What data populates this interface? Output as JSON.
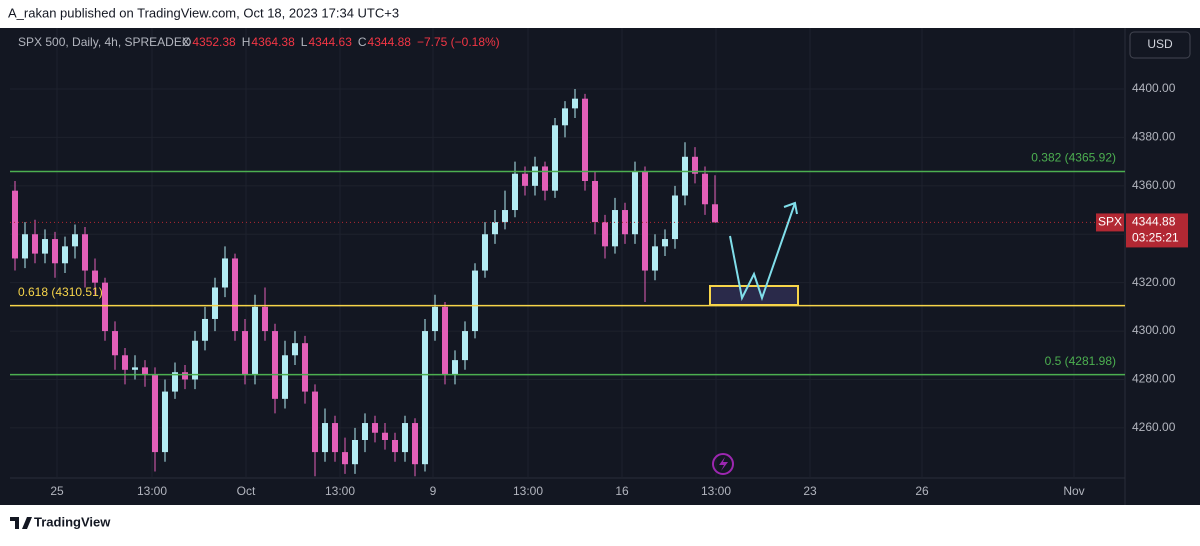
{
  "header": {
    "published": "A_rakan published on TradingView.com, Oct 18, 2023 17:34 UTC+3"
  },
  "footer": {
    "brand": "TradingView"
  },
  "chart_data": {
    "type": "candlestick",
    "symbol": "SPX 500, Daily, 4h, SPREADEX",
    "legend": [
      {
        "key": "O",
        "value": "4352.38"
      },
      {
        "key": "H",
        "value": "4364.38"
      },
      {
        "key": "L",
        "value": "4344.63"
      },
      {
        "key": "C",
        "value": "4344.88"
      }
    ],
    "change": "−7.75 (−0.18%)",
    "currency": "USD",
    "last_price": {
      "ticker": "SPX",
      "value": 4344.88,
      "countdown": "03:25:21",
      "color": "#b22833"
    },
    "up_color": "#b2ebf2",
    "down_color": "#e35fb8",
    "x": [
      0,
      1,
      2,
      3,
      4,
      5,
      6,
      7,
      8,
      9,
      10,
      11,
      12,
      13,
      14,
      15,
      16,
      17,
      18,
      19,
      20,
      21,
      22,
      23,
      24,
      25,
      26,
      27,
      28,
      29,
      30,
      31,
      32,
      33,
      34,
      35,
      36,
      37,
      38,
      39,
      40,
      41,
      42,
      43,
      44,
      45,
      46,
      47,
      48,
      49,
      50,
      51,
      52,
      53,
      54,
      55,
      56,
      57,
      58,
      59,
      60,
      61,
      62,
      63,
      64,
      65,
      66,
      67,
      68,
      69,
      70
    ],
    "open": [
      4358,
      4330,
      4340,
      4332,
      4338,
      4328,
      4335,
      4340,
      4325,
      4320,
      4300,
      4290,
      4284,
      4285,
      4282,
      4250,
      4275,
      4283,
      4280,
      4296,
      4305,
      4318,
      4330,
      4300,
      4282,
      4310,
      4300,
      4272,
      4290,
      4295,
      4275,
      4250,
      4262,
      4250,
      4245,
      4255,
      4262,
      4258,
      4255,
      4250,
      4262,
      4245,
      4300,
      4310,
      4282,
      4288,
      4300,
      4325,
      4340,
      4345,
      4350,
      4365,
      4360,
      4368,
      4358,
      4385,
      4392,
      4396,
      4362,
      4345,
      4335,
      4350,
      4340,
      4366,
      4325,
      4335,
      4338,
      4356,
      4372,
      4365,
      4352.38
    ],
    "high": [
      4362,
      4345,
      4346,
      4342,
      4341,
      4339,
      4344,
      4343,
      4330,
      4322,
      4304,
      4293,
      4290,
      4288,
      4285,
      4280,
      4287,
      4286,
      4300,
      4310,
      4322,
      4335,
      4332,
      4305,
      4315,
      4318,
      4303,
      4296,
      4300,
      4298,
      4278,
      4268,
      4265,
      4256,
      4260,
      4266,
      4265,
      4262,
      4258,
      4265,
      4264,
      4305,
      4315,
      4312,
      4292,
      4304,
      4328,
      4345,
      4350,
      4358,
      4370,
      4368,
      4372,
      4370,
      4388,
      4395,
      4400,
      4398,
      4366,
      4348,
      4355,
      4353,
      4370,
      4368,
      4340,
      4342,
      4360,
      4378,
      4376,
      4368,
      4364.38
    ],
    "low": [
      4325,
      4326,
      4328,
      4328,
      4322,
      4324,
      4330,
      4318,
      4315,
      4296,
      4284,
      4278,
      4280,
      4277,
      4242,
      4246,
      4272,
      4276,
      4276,
      4292,
      4300,
      4314,
      4296,
      4278,
      4278,
      4296,
      4266,
      4268,
      4286,
      4270,
      4240,
      4246,
      4246,
      4241,
      4241,
      4250,
      4254,
      4251,
      4246,
      4246,
      4240,
      4242,
      4296,
      4278,
      4278,
      4284,
      4297,
      4322,
      4336,
      4342,
      4347,
      4356,
      4356,
      4354,
      4355,
      4380,
      4388,
      4358,
      4340,
      4330,
      4332,
      4336,
      4336,
      4312,
      4321,
      4331,
      4334,
      4352,
      4361,
      4348,
      4344.63
    ],
    "close": [
      4330,
      4340,
      4332,
      4338,
      4328,
      4335,
      4340,
      4325,
      4320,
      4300,
      4290,
      4284,
      4285,
      4282,
      4250,
      4275,
      4283,
      4280,
      4296,
      4305,
      4318,
      4330,
      4300,
      4282,
      4310,
      4300,
      4272,
      4290,
      4295,
      4275,
      4250,
      4262,
      4250,
      4245,
      4255,
      4262,
      4258,
      4255,
      4250,
      4262,
      4245,
      4300,
      4310,
      4282,
      4288,
      4300,
      4325,
      4340,
      4345,
      4350,
      4365,
      4360,
      4368,
      4358,
      4385,
      4392,
      4396,
      4362,
      4345,
      4335,
      4350,
      4340,
      4366,
      4325,
      4335,
      4338,
      4356,
      4372,
      4365,
      4352.38,
      4344.88
    ],
    "levels": [
      {
        "label": "0.382 (4365.92)",
        "value": 4365.92,
        "color": "#4caf50",
        "label_side": "right"
      },
      {
        "label": "0.618 (4310.51)",
        "value": 4310.51,
        "color": "#f7d54a",
        "label_side": "left"
      },
      {
        "label": "0.5 (4281.98)",
        "value": 4281.98,
        "color": "#4caf50",
        "label_side": "right"
      }
    ],
    "xlim": [
      -0.5,
      111
    ],
    "xticks": [
      {
        "value": 4.2,
        "label": "25"
      },
      {
        "value": 13.7,
        "label": "13:00"
      },
      {
        "value": 23.1,
        "label": "Oct"
      },
      {
        "value": 32.5,
        "label": "13:00"
      },
      {
        "value": 41.8,
        "label": "9"
      },
      {
        "value": 51.3,
        "label": "13:00"
      },
      {
        "value": 60.7,
        "label": "16"
      },
      {
        "value": 70.1,
        "label": "13:00"
      },
      {
        "value": 79.5,
        "label": "23"
      },
      {
        "value": 90.7,
        "label": "26"
      },
      {
        "value": 105.9,
        "label": "Nov"
      }
    ],
    "ylim": [
      4239.3,
      4425.2
    ],
    "yticks": [
      {
        "value": 4260,
        "label": "4260.00"
      },
      {
        "value": 4280,
        "label": "4280.00"
      },
      {
        "value": 4300,
        "label": "4300.00"
      },
      {
        "value": 4320,
        "label": "4320.00"
      },
      {
        "value": 4340,
        "label": "4340.00"
      },
      {
        "value": 4360,
        "label": "4360.00"
      },
      {
        "value": 4380,
        "label": "4380.00"
      },
      {
        "value": 4400,
        "label": "4400.00"
      }
    ],
    "grid": true
  }
}
